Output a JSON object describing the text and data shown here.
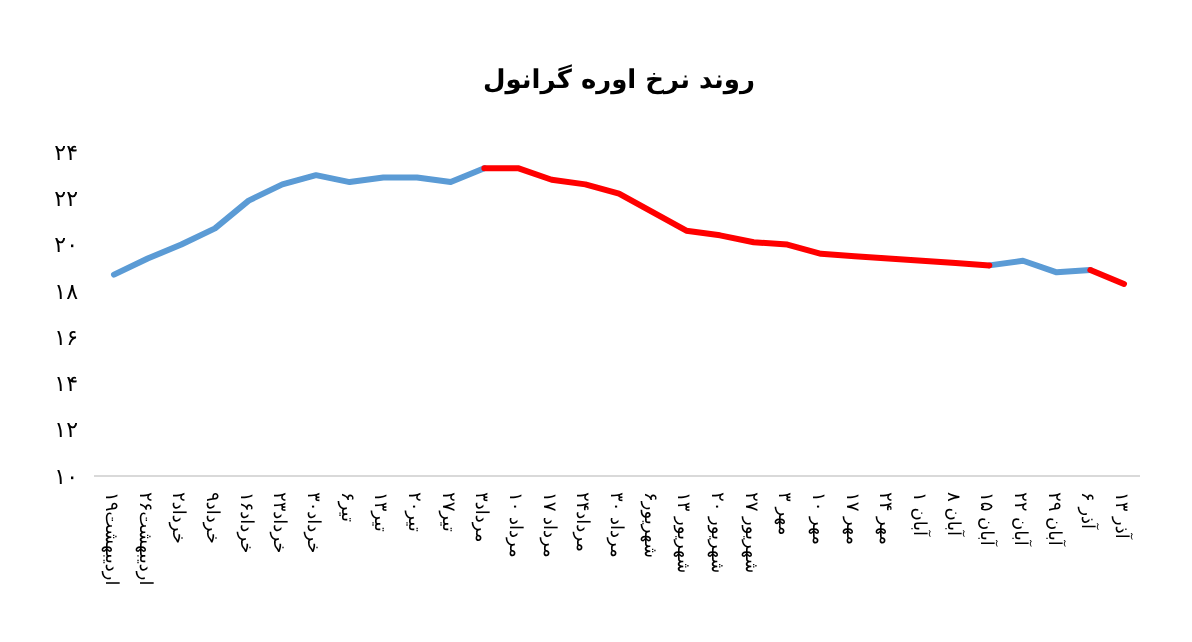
{
  "chart_data": {
    "type": "line",
    "title": "روند نرخ اوره گرانول",
    "categories": [
      "۱۹اردیبهشت",
      "۲۶اردیبهشت",
      "۲خرداد",
      "۹خرداد",
      "۱۶خرداد",
      "۲۳خرداد",
      "۳۰خرداد",
      "۶تیر",
      "۱۳تیر",
      "۲۰تیر",
      "۲۷تیر",
      "۳مرداد",
      "۱۰ مرداد",
      "۱۷ مرداد",
      "۲۴مرداد",
      "۳۰ مرداد",
      "۶شهریور",
      "۱۳ شهریور",
      "۲۰ شهریور",
      "۲۷ شهریور",
      "۳ مهر",
      "۱۰ مهر",
      "۱۷ مهر",
      "۲۴ مهر",
      "۱ آبان",
      "۸ آبان",
      "۱۵ آبان",
      "۲۲ آبان",
      "۲۹ آبان",
      "۶ آذر",
      "۱۳ آذر"
    ],
    "series": [
      {
        "color": "#5b9bd5",
        "values": [
          18.7,
          19.4,
          20.0,
          20.7,
          21.9,
          22.6,
          23.0,
          22.7,
          22.9,
          22.9,
          22.7,
          23.3,
          null,
          null,
          null,
          null,
          null,
          null,
          null,
          null,
          null,
          null,
          null,
          null,
          null,
          null,
          19.1,
          19.3,
          18.8,
          18.9,
          null
        ]
      },
      {
        "color": "#ff0000",
        "values": [
          null,
          null,
          null,
          null,
          null,
          null,
          null,
          null,
          null,
          null,
          null,
          23.3,
          23.3,
          22.8,
          22.6,
          22.2,
          21.4,
          20.6,
          20.4,
          20.1,
          20.0,
          19.6,
          19.5,
          19.4,
          19.3,
          19.2,
          19.1,
          null,
          null,
          18.9,
          18.3
        ]
      }
    ],
    "ylim": [
      10,
      24
    ],
    "yticks": [
      {
        "value": 10,
        "label": "۱۰"
      },
      {
        "value": 12,
        "label": "۱۲"
      },
      {
        "value": 14,
        "label": "۱۴"
      },
      {
        "value": 16,
        "label": "۱۶"
      },
      {
        "value": 18,
        "label": "۱۸"
      },
      {
        "value": 20,
        "label": "۲۰"
      },
      {
        "value": 22,
        "label": "۲۲"
      },
      {
        "value": 24,
        "label": "۲۴"
      }
    ],
    "marker": "none",
    "line_style": "solid"
  }
}
